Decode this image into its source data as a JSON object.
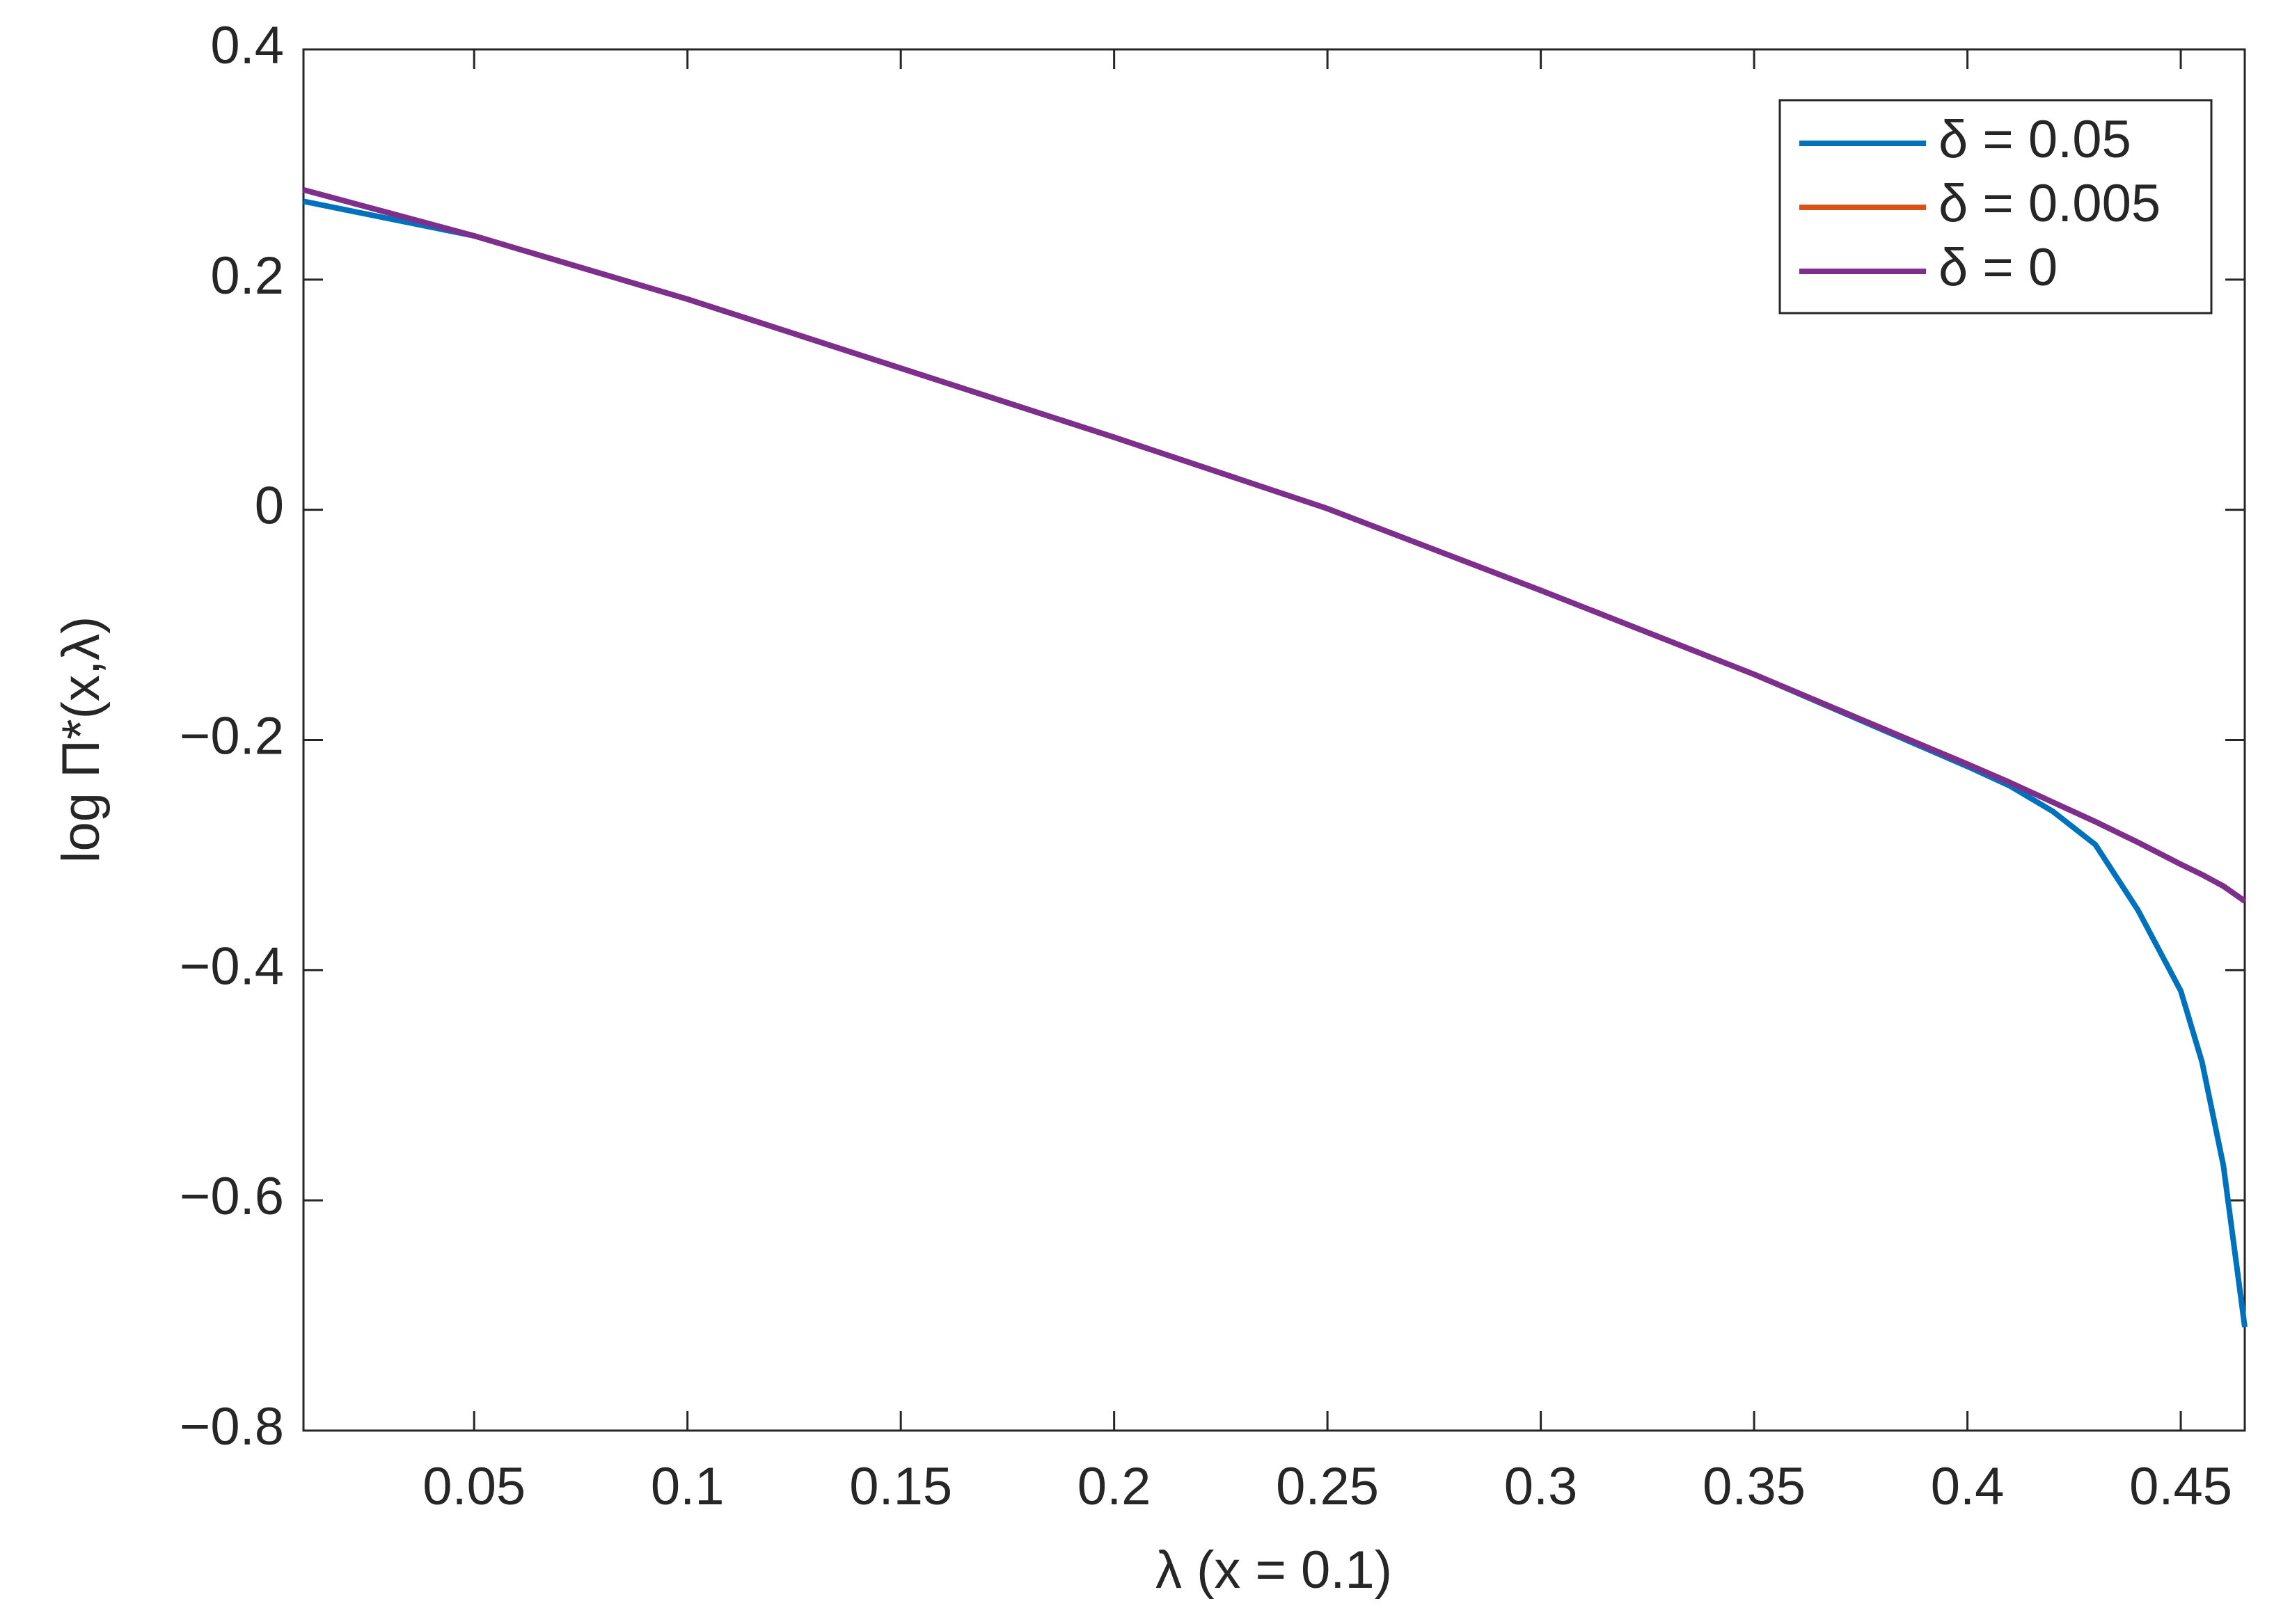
{
  "chart_data": {
    "type": "line",
    "x_label": "λ (x = 0.1)",
    "y_label": "log Π*(x,λ)",
    "x": [
      0.01,
      0.05,
      0.1,
      0.15,
      0.2,
      0.25,
      0.3,
      0.35,
      0.4,
      0.41,
      0.42,
      0.43,
      0.44,
      0.45,
      0.455,
      0.46,
      0.465
    ],
    "series": [
      {
        "name": "δ = 0.05",
        "color": "#0072bd",
        "values": [
          0.268,
          0.238,
          0.183,
          0.123,
          0.063,
          0.001,
          -0.07,
          -0.143,
          -0.223,
          -0.24,
          -0.262,
          -0.291,
          -0.348,
          -0.418,
          -0.48,
          -0.57,
          -0.71
        ]
      },
      {
        "name": "δ = 0.005",
        "color": "#d95319",
        "values": [
          0.278,
          0.238,
          0.183,
          0.123,
          0.063,
          0.001,
          -0.07,
          -0.143,
          -0.221,
          -0.237,
          -0.254,
          -0.271,
          -0.289,
          -0.308,
          -0.317,
          -0.327,
          -0.34
        ]
      },
      {
        "name": "δ = 0",
        "color": "#7e2f8e",
        "values": [
          0.278,
          0.238,
          0.183,
          0.123,
          0.063,
          0.001,
          -0.07,
          -0.143,
          -0.221,
          -0.237,
          -0.254,
          -0.271,
          -0.289,
          -0.308,
          -0.317,
          -0.327,
          -0.34
        ]
      }
    ],
    "xlim": [
      0.01,
      0.465
    ],
    "ylim": [
      -0.8,
      0.4
    ],
    "xticks": [
      0.05,
      0.1,
      0.15,
      0.2,
      0.25,
      0.3,
      0.35,
      0.4,
      0.45
    ],
    "yticks": [
      {
        "value": -0.8,
        "label": "−0.8"
      },
      {
        "value": -0.6,
        "label": "−0.6"
      },
      {
        "value": -0.4,
        "label": "−0.4"
      },
      {
        "value": -0.2,
        "label": "−0.2"
      },
      0,
      0.2,
      0.4
    ],
    "legend": "top-right",
    "grid": false
  }
}
